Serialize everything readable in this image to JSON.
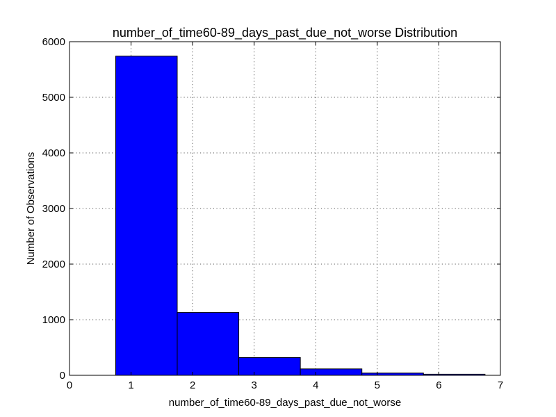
{
  "chart_data": {
    "type": "bar",
    "title": "number_of_time60-89_days_past_due_not_worse Distribution",
    "xlabel": "number_of_time60-89_days_past_due_not_worse",
    "ylabel": "Number of Observations",
    "xlim": [
      0,
      7
    ],
    "ylim": [
      0,
      6000
    ],
    "xticks": [
      0,
      1,
      2,
      3,
      4,
      5,
      6,
      7
    ],
    "yticks": [
      0,
      1000,
      2000,
      3000,
      4000,
      5000,
      6000
    ],
    "grid": true,
    "bar_color": "#0000ff",
    "bins": [
      {
        "x0": 0.75,
        "x1": 1.75,
        "value": 5740
      },
      {
        "x0": 1.75,
        "x1": 2.75,
        "value": 1130
      },
      {
        "x0": 2.75,
        "x1": 3.75,
        "value": 320
      },
      {
        "x0": 3.75,
        "x1": 4.75,
        "value": 115
      },
      {
        "x0": 4.75,
        "x1": 5.75,
        "value": 40
      },
      {
        "x0": 5.75,
        "x1": 6.75,
        "value": 20
      }
    ]
  }
}
